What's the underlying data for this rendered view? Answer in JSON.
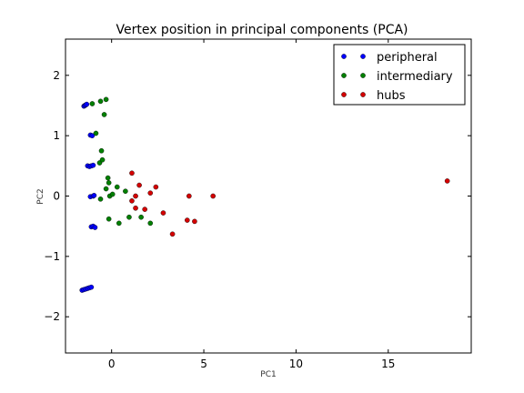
{
  "chart_data": {
    "type": "scatter",
    "title": "Vertex position in principal components (PCA)",
    "xlabel": "PC1",
    "ylabel": "PC2",
    "xlim": [
      -2.5,
      19.5
    ],
    "ylim": [
      -2.6,
      2.6
    ],
    "xticks": [
      0,
      5,
      10,
      15
    ],
    "yticks": [
      -2,
      -1,
      0,
      1,
      2
    ],
    "grid": false,
    "legend_position": "top-right",
    "series": [
      {
        "name": "peripheral",
        "color": "#0000ff",
        "points": [
          [
            -1.5,
            1.49
          ],
          [
            -1.45,
            1.5
          ],
          [
            -1.4,
            1.51
          ],
          [
            -1.35,
            1.52
          ],
          [
            -1.15,
            1.01
          ],
          [
            -1.05,
            1.0
          ],
          [
            -1.3,
            0.5
          ],
          [
            -1.2,
            0.49
          ],
          [
            -1.1,
            0.5
          ],
          [
            -1.0,
            0.51
          ],
          [
            -1.15,
            -0.01
          ],
          [
            -1.0,
            0.0
          ],
          [
            -0.95,
            0.01
          ],
          [
            -1.1,
            -0.51
          ],
          [
            -1.0,
            -0.5
          ],
          [
            -0.9,
            -0.52
          ],
          [
            -1.6,
            -1.56
          ],
          [
            -1.5,
            -1.55
          ],
          [
            -1.4,
            -1.54
          ],
          [
            -1.3,
            -1.53
          ],
          [
            -1.2,
            -1.52
          ],
          [
            -1.1,
            -1.51
          ]
        ]
      },
      {
        "name": "intermediary",
        "color": "#008000",
        "points": [
          [
            -1.05,
            1.53
          ],
          [
            -0.6,
            1.57
          ],
          [
            -0.3,
            1.6
          ],
          [
            -0.4,
            1.35
          ],
          [
            -0.85,
            1.04
          ],
          [
            -0.55,
            0.75
          ],
          [
            -0.65,
            0.55
          ],
          [
            -0.5,
            0.6
          ],
          [
            -0.2,
            0.3
          ],
          [
            -0.15,
            0.22
          ],
          [
            -0.3,
            0.12
          ],
          [
            0.3,
            0.15
          ],
          [
            -0.1,
            0.0
          ],
          [
            0.05,
            0.03
          ],
          [
            -0.6,
            -0.05
          ],
          [
            -0.15,
            -0.38
          ],
          [
            0.4,
            -0.45
          ],
          [
            0.95,
            -0.35
          ],
          [
            1.6,
            -0.35
          ],
          [
            2.1,
            -0.45
          ],
          [
            0.75,
            0.08
          ]
        ]
      },
      {
        "name": "hubs",
        "color": "#d40000",
        "points": [
          [
            1.1,
            0.38
          ],
          [
            1.5,
            0.18
          ],
          [
            1.3,
            0.0
          ],
          [
            1.1,
            -0.08
          ],
          [
            2.1,
            0.05
          ],
          [
            2.4,
            0.15
          ],
          [
            1.3,
            -0.2
          ],
          [
            1.8,
            -0.22
          ],
          [
            2.8,
            -0.28
          ],
          [
            4.2,
            0.0
          ],
          [
            5.5,
            0.0
          ],
          [
            4.1,
            -0.4
          ],
          [
            4.5,
            -0.42
          ],
          [
            3.3,
            -0.63
          ],
          [
            18.2,
            0.25
          ]
        ]
      }
    ]
  }
}
